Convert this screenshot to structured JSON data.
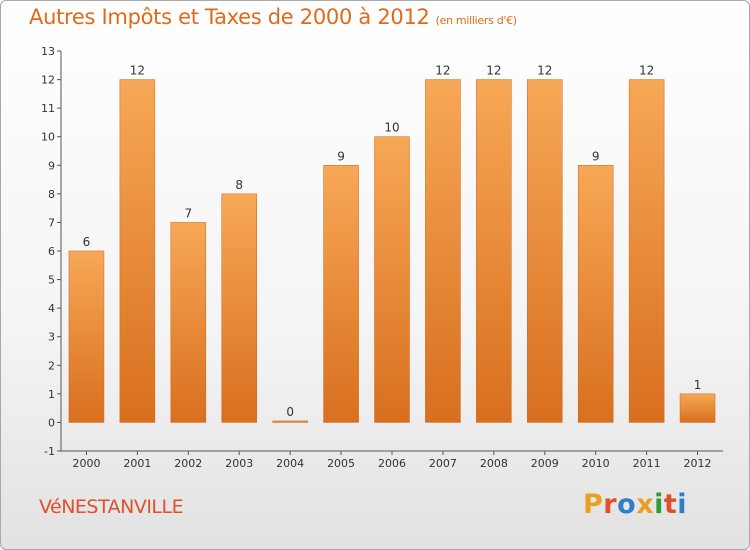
{
  "header": {
    "title": "Autres Impôts et Taxes de 2000 à 2012",
    "subtitle": "(en milliers d'€)"
  },
  "footer": {
    "town": "VéNESTANVILLE",
    "logo_letters": [
      "P",
      "r",
      "o",
      "x",
      "i",
      "t",
      "i"
    ],
    "logo_colors": [
      "#e8a020",
      "#e0502a",
      "#2f7fc8",
      "#e8a020",
      "#2f9c3a",
      "#e0502a",
      "#2f7fc8"
    ]
  },
  "chart_data": {
    "type": "bar",
    "categories": [
      "2000",
      "2001",
      "2002",
      "2003",
      "2004",
      "2005",
      "2006",
      "2007",
      "2008",
      "2009",
      "2010",
      "2011",
      "2012"
    ],
    "values": [
      6,
      12,
      7,
      8,
      0,
      9,
      10,
      12,
      12,
      12,
      9,
      12,
      1
    ],
    "ylim": [
      -1,
      13
    ],
    "yticks": [
      -1,
      0,
      1,
      2,
      3,
      4,
      5,
      6,
      7,
      8,
      9,
      10,
      11,
      12,
      13
    ],
    "grid": false,
    "colors": {
      "bar_top": "#f7a856",
      "bar_bottom": "#d86f1e",
      "bar_edge": "#c8671c",
      "axis": "#555555",
      "label": "#333333"
    }
  }
}
